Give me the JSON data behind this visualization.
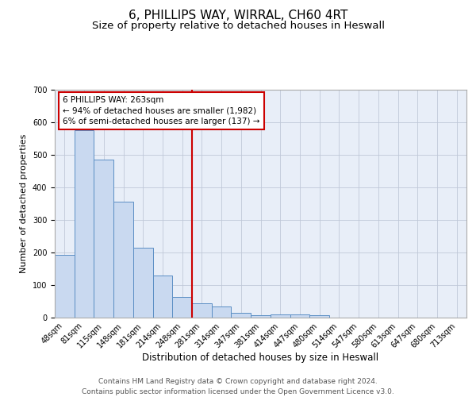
{
  "title1": "6, PHILLIPS WAY, WIRRAL, CH60 4RT",
  "title2": "Size of property relative to detached houses in Heswall",
  "xlabel": "Distribution of detached houses by size in Heswall",
  "ylabel": "Number of detached properties",
  "bar_labels": [
    "48sqm",
    "81sqm",
    "115sqm",
    "148sqm",
    "181sqm",
    "214sqm",
    "248sqm",
    "281sqm",
    "314sqm",
    "347sqm",
    "381sqm",
    "414sqm",
    "447sqm",
    "480sqm",
    "514sqm",
    "547sqm",
    "580sqm",
    "613sqm",
    "647sqm",
    "680sqm",
    "713sqm"
  ],
  "bar_values": [
    193,
    575,
    485,
    355,
    215,
    130,
    63,
    45,
    33,
    15,
    8,
    10,
    10,
    7,
    0,
    0,
    0,
    0,
    0,
    0,
    0
  ],
  "bar_color": "#c9d9f0",
  "bar_edge_color": "#5b8ec4",
  "grid_color": "#c0c8d8",
  "background_color": "#e8eef8",
  "vline_x": 6.5,
  "vline_color": "#cc0000",
  "annotation_text": "6 PHILLIPS WAY: 263sqm\n← 94% of detached houses are smaller (1,982)\n6% of semi-detached houses are larger (137) →",
  "annotation_box_color": "#ffffff",
  "annotation_box_edge": "#cc0000",
  "ylim": [
    0,
    700
  ],
  "yticks": [
    0,
    100,
    200,
    300,
    400,
    500,
    600,
    700
  ],
  "footer": "Contains HM Land Registry data © Crown copyright and database right 2024.\nContains public sector information licensed under the Open Government Licence v3.0.",
  "title1_fontsize": 11,
  "title2_fontsize": 9.5,
  "xlabel_fontsize": 8.5,
  "ylabel_fontsize": 8,
  "tick_fontsize": 7,
  "annotation_fontsize": 7.5,
  "footer_fontsize": 6.5
}
